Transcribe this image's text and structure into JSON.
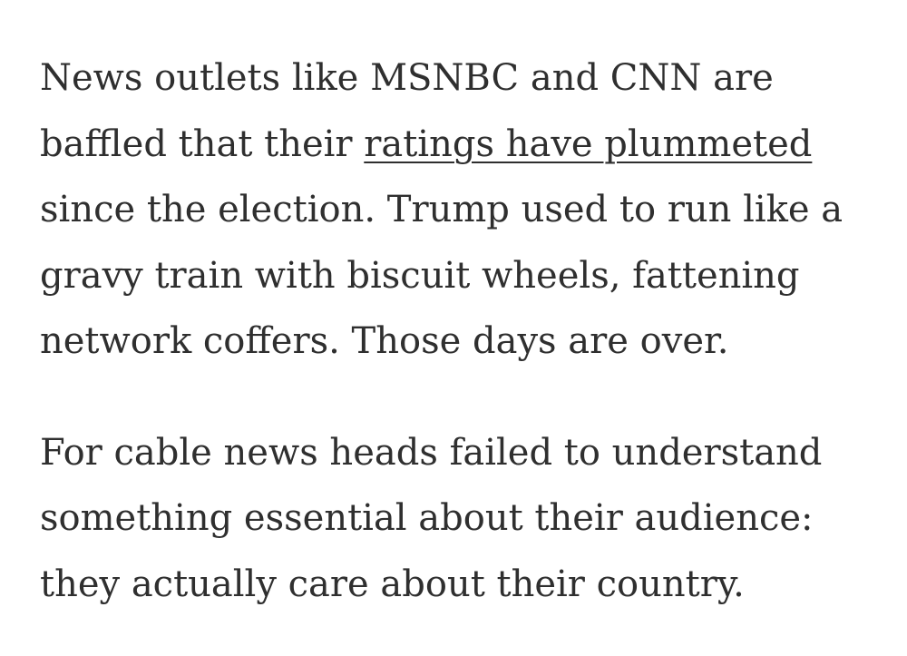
{
  "article": {
    "paragraph1": {
      "line1": "News outlets like MSNBC and CNN are",
      "line2_prefix": "baffled that their ",
      "link_text": "ratings have plummeted",
      "line3": "since the election. Trump used to run like a",
      "line4": "gravy train with biscuit wheels, fattening",
      "line5": "network coffers. Those days are over."
    },
    "paragraph2": {
      "line1": "For cable news heads failed to understand",
      "line2": "something essential about their audience:",
      "line3": "they actually care about their country."
    }
  }
}
